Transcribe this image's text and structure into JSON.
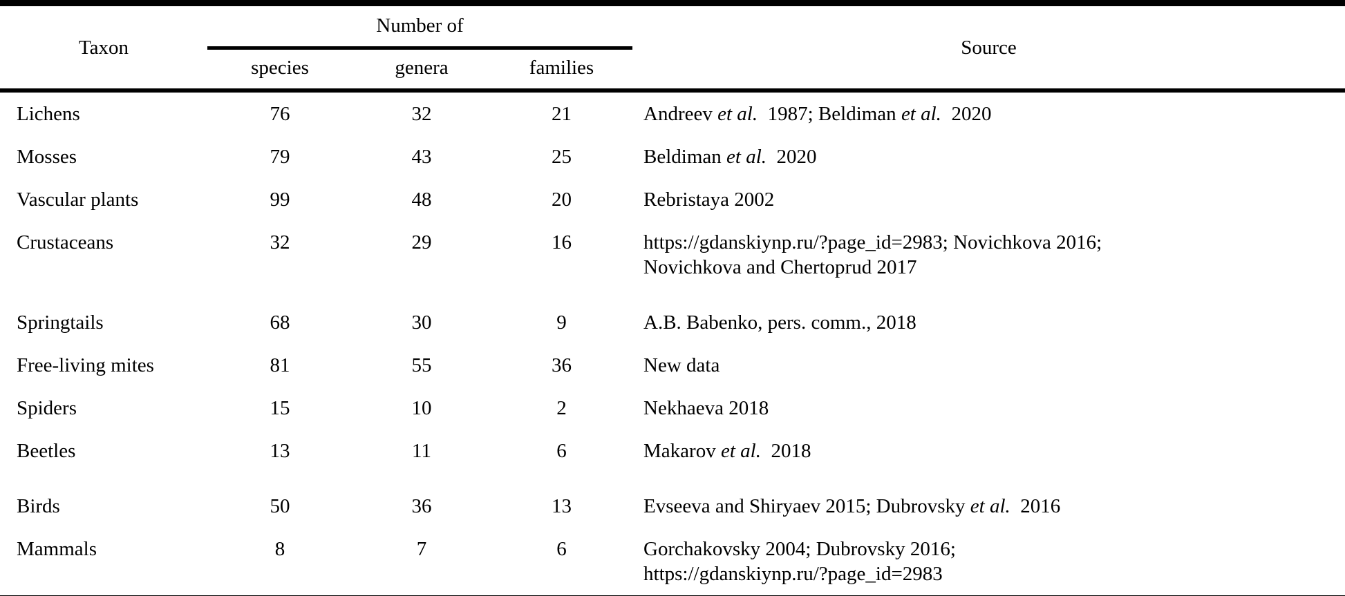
{
  "colors": {
    "text": "#000000",
    "background": "#ffffff",
    "rule": "#000000"
  },
  "table": {
    "header": {
      "taxon": "Taxon",
      "number_of": "Number of",
      "subcolumns": [
        "species",
        "genera",
        "families"
      ],
      "source": "Source"
    },
    "rows": [
      {
        "taxon": "Lichens",
        "species": 76,
        "genera": 32,
        "families": 21,
        "source_lines": [
          [
            {
              "text": "Andreev ",
              "italic": false
            },
            {
              "text": "et al.",
              "italic": true
            },
            {
              "text": "  1987; Beldiman ",
              "italic": false
            },
            {
              "text": "et al.",
              "italic": true
            },
            {
              "text": "  2020",
              "italic": false
            }
          ]
        ]
      },
      {
        "taxon": "Mosses",
        "species": 79,
        "genera": 43,
        "families": 25,
        "source_lines": [
          [
            {
              "text": "Beldiman ",
              "italic": false
            },
            {
              "text": "et al.",
              "italic": true
            },
            {
              "text": "  2020",
              "italic": false
            }
          ]
        ]
      },
      {
        "taxon": "Vascular plants",
        "species": 99,
        "genera": 48,
        "families": 20,
        "source_lines": [
          [
            {
              "text": "Rebristaya 2002",
              "italic": false
            }
          ]
        ]
      },
      {
        "taxon": "Crustaceans",
        "species": 32,
        "genera": 29,
        "families": 16,
        "source_lines": [
          [
            {
              "text": "https://gdanskiynp.ru/?page_id=2983; Novichkova 2016;",
              "italic": false
            }
          ],
          [
            {
              "text": "Novichkova and Chertoprud 2017",
              "italic": false
            }
          ]
        ]
      },
      {
        "taxon": "Springtails",
        "species": 68,
        "genera": 30,
        "families": 9,
        "source_lines": [
          [
            {
              "text": "A.B. Babenko, pers. comm., 2018",
              "italic": false
            }
          ]
        ]
      },
      {
        "taxon": "Free-living mites",
        "species": 81,
        "genera": 55,
        "families": 36,
        "source_lines": [
          [
            {
              "text": "New data",
              "italic": false
            }
          ]
        ]
      },
      {
        "taxon": "Spiders",
        "species": 15,
        "genera": 10,
        "families": 2,
        "source_lines": [
          [
            {
              "text": "Nekhaeva 2018",
              "italic": false
            }
          ]
        ]
      },
      {
        "taxon": "Beetles",
        "species": 13,
        "genera": 11,
        "families": 6,
        "source_lines": [
          [
            {
              "text": "Makarov ",
              "italic": false
            },
            {
              "text": "et al.",
              "italic": true
            },
            {
              "text": "  2018",
              "italic": false
            }
          ]
        ]
      },
      {
        "taxon": "Birds",
        "species": 50,
        "genera": 36,
        "families": 13,
        "source_lines": [
          [
            {
              "text": "Evseeva and Shiryaev 2015; Dubrovsky ",
              "italic": false
            },
            {
              "text": "et al.",
              "italic": true
            },
            {
              "text": "  2016",
              "italic": false
            }
          ]
        ]
      },
      {
        "taxon": "Mammals",
        "species": 8,
        "genera": 7,
        "families": 6,
        "source_lines": [
          [
            {
              "text": "Gorchakovsky 2004; Dubrovsky 2016;",
              "italic": false
            }
          ],
          [
            {
              "text": "https://gdanskiynp.ru/?page_id=2983",
              "italic": false
            }
          ]
        ]
      }
    ]
  }
}
